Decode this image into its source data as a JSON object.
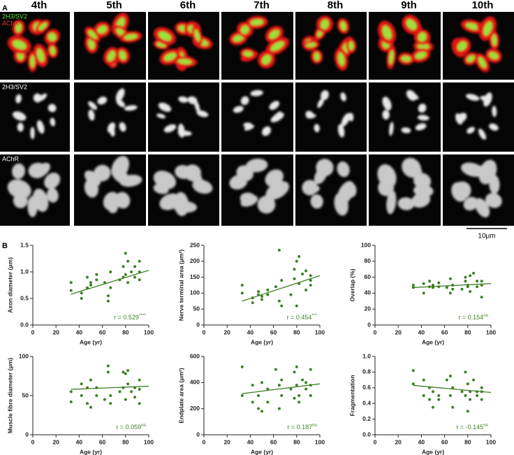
{
  "panel_a": {
    "label": "A",
    "columns": [
      "4th",
      "5th",
      "6th",
      "7th",
      "8th",
      "9th",
      "10th"
    ],
    "rows": [
      {
        "labels": [
          "2H3/SV2",
          "AChR"
        ]
      },
      {
        "labels": [
          "2H3/SV2"
        ]
      },
      {
        "labels": [
          "AChR"
        ]
      }
    ],
    "scale_bar": "10μm"
  },
  "panel_b": {
    "label": "B"
  },
  "chart_data": [
    {
      "type": "scatter",
      "xlabel": "Age (yr)",
      "ylabel": "Axon diameter (μm)",
      "color": "#3d7f24",
      "x": [
        33,
        33,
        42,
        42,
        47,
        47,
        50,
        50,
        55,
        55,
        62,
        65,
        65,
        67,
        67,
        75,
        78,
        78,
        80,
        80,
        82,
        82,
        85,
        88,
        88,
        92,
        92,
        92
      ],
      "y": [
        0.8,
        0.65,
        0.6,
        0.5,
        0.7,
        0.9,
        0.75,
        0.8,
        0.95,
        0.85,
        0.8,
        0.45,
        0.55,
        0.7,
        1.0,
        0.85,
        0.9,
        1.1,
        1.35,
        0.95,
        1.2,
        0.8,
        1.0,
        1.1,
        0.9,
        1.2,
        0.85,
        1.0
      ],
      "fit": {
        "x": [
          33,
          100
        ],
        "y": [
          0.58,
          1.03
        ]
      },
      "annotation": "r = 0.529",
      "annotation_sup": "****",
      "xlim": [
        0,
        100
      ],
      "xticks": [
        0,
        20,
        40,
        60,
        80,
        100
      ],
      "ylim": [
        0,
        1.5
      ],
      "yticks": [
        {
          "value": 0,
          "label": "0.0"
        },
        0.5,
        {
          "value": 1,
          "label": "1.0"
        },
        1.5
      ]
    },
    {
      "type": "scatter",
      "xlabel": "Age (yr)",
      "ylabel": "Nerve terminal area (μm²)",
      "color": "#3d7f24",
      "x": [
        33,
        33,
        42,
        42,
        47,
        47,
        50,
        50,
        55,
        55,
        62,
        65,
        65,
        67,
        67,
        75,
        78,
        78,
        80,
        80,
        82,
        82,
        85,
        88,
        88,
        92,
        92,
        92
      ],
      "y": [
        125,
        100,
        85,
        70,
        95,
        105,
        80,
        90,
        95,
        110,
        120,
        75,
        235,
        140,
        60,
        95,
        175,
        145,
        60,
        200,
        215,
        130,
        160,
        170,
        110,
        140,
        125,
        155
      ],
      "fit": {
        "x": [
          33,
          100
        ],
        "y": [
          75,
          155
        ]
      },
      "annotation": "r = 0.454",
      "annotation_sup": "***",
      "xlim": [
        0,
        100
      ],
      "xticks": [
        0,
        20,
        40,
        60,
        80,
        100
      ],
      "ylim": [
        0,
        250
      ],
      "yticks": [
        0,
        50,
        100,
        150,
        200,
        250
      ]
    },
    {
      "type": "scatter",
      "xlabel": "Age (yr)",
      "ylabel": "Overlap (%)",
      "color": "#3d7f24",
      "x": [
        33,
        33,
        42,
        42,
        47,
        47,
        50,
        50,
        55,
        55,
        62,
        65,
        65,
        67,
        67,
        75,
        78,
        78,
        80,
        80,
        82,
        82,
        85,
        88,
        88,
        92,
        92,
        92
      ],
      "y": [
        50,
        47,
        52,
        40,
        48,
        55,
        47,
        50,
        48,
        53,
        47,
        40,
        58,
        50,
        45,
        45,
        55,
        60,
        50,
        48,
        62,
        42,
        65,
        55,
        48,
        55,
        35,
        50
      ],
      "fit": {
        "x": [
          33,
          100
        ],
        "y": [
          47,
          52
        ]
      },
      "annotation": "r = 0.154",
      "annotation_sup": "ns",
      "xlim": [
        0,
        100
      ],
      "xticks": [
        0,
        20,
        40,
        60,
        80,
        100
      ],
      "ylim": [
        0,
        100
      ],
      "yticks": [
        0,
        20,
        40,
        60,
        80,
        100
      ]
    },
    {
      "type": "scatter",
      "xlabel": "Age (yr)",
      "ylabel": "Muscle fibre diameter (μm)",
      "color": "#3d7f24",
      "x": [
        33,
        33,
        42,
        42,
        47,
        47,
        50,
        50,
        55,
        55,
        62,
        65,
        65,
        67,
        67,
        75,
        78,
        78,
        80,
        80,
        82,
        82,
        85,
        88,
        88,
        92,
        92,
        92
      ],
      "y": [
        55,
        42,
        65,
        50,
        40,
        60,
        70,
        35,
        50,
        60,
        45,
        80,
        88,
        50,
        40,
        55,
        80,
        60,
        78,
        45,
        82,
        65,
        55,
        60,
        48,
        70,
        40,
        58
      ],
      "fit": {
        "x": [
          33,
          100
        ],
        "y": [
          58,
          62
        ]
      },
      "annotation": "r = 0.059",
      "annotation_sup": "ns",
      "xlim": [
        0,
        100
      ],
      "xticks": [
        0,
        20,
        40,
        60,
        80,
        100
      ],
      "ylim": [
        0,
        100
      ],
      "yticks": [
        0,
        50,
        100
      ]
    },
    {
      "type": "scatter",
      "xlabel": "Age (yr)",
      "ylabel": "Endplate area (μm²)",
      "color": "#3d7f24",
      "x": [
        33,
        33,
        42,
        42,
        47,
        47,
        50,
        50,
        55,
        55,
        62,
        65,
        65,
        67,
        67,
        75,
        78,
        78,
        80,
        80,
        82,
        82,
        85,
        88,
        88,
        92,
        92,
        92
      ],
      "y": [
        520,
        300,
        380,
        250,
        300,
        200,
        400,
        180,
        350,
        250,
        500,
        200,
        380,
        300,
        420,
        350,
        480,
        280,
        520,
        380,
        300,
        250,
        420,
        400,
        350,
        500,
        300,
        380
      ],
      "fit": {
        "x": [
          33,
          100
        ],
        "y": [
          315,
          390
        ]
      },
      "annotation": "r = 0.187",
      "annotation_sup": "ns",
      "xlim": [
        0,
        100
      ],
      "xticks": [
        0,
        20,
        40,
        60,
        80,
        100
      ],
      "ylim": [
        0,
        600
      ],
      "yticks": [
        0,
        200,
        400,
        600
      ]
    },
    {
      "type": "scatter",
      "xlabel": "Age (yr)",
      "ylabel": "Fragmentation",
      "color": "#3d7f24",
      "x": [
        33,
        33,
        42,
        42,
        47,
        47,
        50,
        50,
        55,
        55,
        62,
        65,
        65,
        67,
        67,
        75,
        78,
        78,
        80,
        80,
        82,
        82,
        85,
        88,
        88,
        92,
        92,
        92
      ],
      "y": [
        0.82,
        0.65,
        0.7,
        0.5,
        0.45,
        0.6,
        0.55,
        0.35,
        0.5,
        0.45,
        0.7,
        0.75,
        0.5,
        0.35,
        0.6,
        0.55,
        0.8,
        0.5,
        0.65,
        0.3,
        0.55,
        0.45,
        0.7,
        0.55,
        0.5,
        0.6,
        0.45,
        0.55
      ],
      "fit": {
        "x": [
          33,
          100
        ],
        "y": [
          0.63,
          0.54
        ]
      },
      "annotation": "r = -0.145",
      "annotation_sup": "ns",
      "xlim": [
        0,
        100
      ],
      "xticks": [
        0,
        20,
        40,
        60,
        80,
        100
      ],
      "ylim": [
        0,
        1
      ],
      "yticks": [
        {
          "value": 0,
          "label": "0.0"
        },
        0.2,
        0.4,
        0.6,
        0.8,
        {
          "value": 1,
          "label": "1.0"
        }
      ]
    }
  ]
}
